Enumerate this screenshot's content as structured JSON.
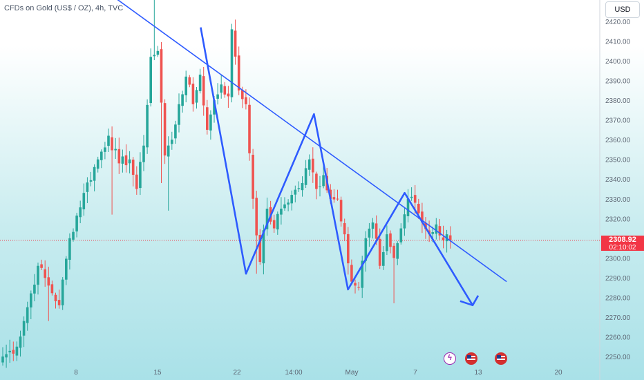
{
  "header": {
    "title": "CFDs on Gold (US$ / OZ), 4h, TVC",
    "currency_button": "USD"
  },
  "price_label": {
    "price": "2308.92",
    "countdown": "02:10:02",
    "color": "#f23645"
  },
  "colors": {
    "up": "#26a69a",
    "down": "#ef5350",
    "drawing": "#2e5bff",
    "background_top": "#ffffff",
    "background_bottom": "#a9e1e8"
  },
  "events": [
    {
      "icon": "lightning-icon"
    },
    {
      "icon": "us-flag-icon"
    },
    {
      "icon": "us-flag-icon"
    }
  ],
  "chart_data": {
    "type": "candlestick",
    "title": "CFDs on Gold (US$ / OZ), 4h, TVC",
    "x_tick_labels": [
      "8",
      "15",
      "22",
      "14:00",
      "May",
      "7",
      "13",
      "20"
    ],
    "y_tick_labels": [
      "2420.00",
      "2410.00",
      "2400.00",
      "2390.00",
      "2380.00",
      "2370.00",
      "2360.00",
      "2350.00",
      "2340.00",
      "2330.00",
      "2320.00",
      "2310.00",
      "2300.00",
      "2290.00",
      "2280.00",
      "2270.00",
      "2260.00",
      "2250.00"
    ],
    "ylim": [
      2246,
      2424
    ],
    "grid": false,
    "last_price": 2308.92,
    "anchors": [
      {
        "i": 0,
        "c": 2250
      },
      {
        "i": 4,
        "c": 2255
      },
      {
        "i": 7,
        "c": 2275
      },
      {
        "i": 10,
        "c": 2296
      },
      {
        "i": 13,
        "c": 2286
      },
      {
        "i": 16,
        "c": 2276
      },
      {
        "i": 19,
        "c": 2310
      },
      {
        "i": 23,
        "c": 2333
      },
      {
        "i": 27,
        "c": 2350
      },
      {
        "i": 30,
        "c": 2362
      },
      {
        "i": 33,
        "c": 2348
      },
      {
        "i": 36,
        "c": 2350
      },
      {
        "i": 38,
        "c": 2335
      },
      {
        "i": 40,
        "c": 2357
      },
      {
        "i": 42,
        "c": 2402
      },
      {
        "i": 44,
        "c": 2405
      },
      {
        "i": 46,
        "c": 2352
      },
      {
        "i": 48,
        "c": 2360
      },
      {
        "i": 50,
        "c": 2378
      },
      {
        "i": 52,
        "c": 2392
      },
      {
        "i": 54,
        "c": 2378
      },
      {
        "i": 56,
        "c": 2393
      },
      {
        "i": 58,
        "c": 2365
      },
      {
        "i": 60,
        "c": 2380
      },
      {
        "i": 62,
        "c": 2388
      },
      {
        "i": 64,
        "c": 2382
      },
      {
        "i": 65,
        "c": 2416
      },
      {
        "i": 67,
        "c": 2385
      },
      {
        "i": 69,
        "c": 2378
      },
      {
        "i": 71,
        "c": 2330
      },
      {
        "i": 73,
        "c": 2298
      },
      {
        "i": 75,
        "c": 2325
      },
      {
        "i": 77,
        "c": 2315
      },
      {
        "i": 79,
        "c": 2325
      },
      {
        "i": 82,
        "c": 2332
      },
      {
        "i": 85,
        "c": 2338
      },
      {
        "i": 87,
        "c": 2350
      },
      {
        "i": 89,
        "c": 2335
      },
      {
        "i": 91,
        "c": 2342
      },
      {
        "i": 93,
        "c": 2330
      },
      {
        "i": 95,
        "c": 2330
      },
      {
        "i": 97,
        "c": 2312
      },
      {
        "i": 99,
        "c": 2288
      },
      {
        "i": 101,
        "c": 2285
      },
      {
        "i": 103,
        "c": 2310
      },
      {
        "i": 105,
        "c": 2318
      },
      {
        "i": 107,
        "c": 2296
      },
      {
        "i": 109,
        "c": 2312
      },
      {
        "i": 111,
        "c": 2300
      },
      {
        "i": 113,
        "c": 2315
      },
      {
        "i": 115,
        "c": 2330
      },
      {
        "i": 117,
        "c": 2328
      },
      {
        "i": 119,
        "c": 2318
      },
      {
        "i": 121,
        "c": 2312
      },
      {
        "i": 123,
        "c": 2317
      },
      {
        "i": 125,
        "c": 2309
      },
      {
        "i": 126,
        "c": 2312
      },
      {
        "i": 127,
        "c": 2308.92
      }
    ],
    "spikes": [
      {
        "i": 43,
        "h": 2440
      },
      {
        "i": 45,
        "l": 2338
      },
      {
        "i": 47,
        "l": 2324
      },
      {
        "i": 31,
        "l": 2322
      },
      {
        "i": 100,
        "l": 2282
      },
      {
        "i": 111,
        "l": 2277
      },
      {
        "i": 72,
        "l": 2292
      },
      {
        "i": 13,
        "l": 2268
      }
    ],
    "drawings": {
      "trendline": [
        {
          "date": "Apr 10",
          "price": 2438
        },
        {
          "date": "May 16",
          "price": 2288
        }
      ],
      "zigzag": [
        {
          "date": "Apr 19",
          "price": 2417
        },
        {
          "date": "Apr 23",
          "price": 2292
        },
        {
          "date": "Apr 29",
          "price": 2373
        },
        {
          "date": "May 2",
          "price": 2284
        },
        {
          "date": "May 7",
          "price": 2333
        },
        {
          "date": "May 13",
          "price": 2276
        }
      ]
    }
  }
}
